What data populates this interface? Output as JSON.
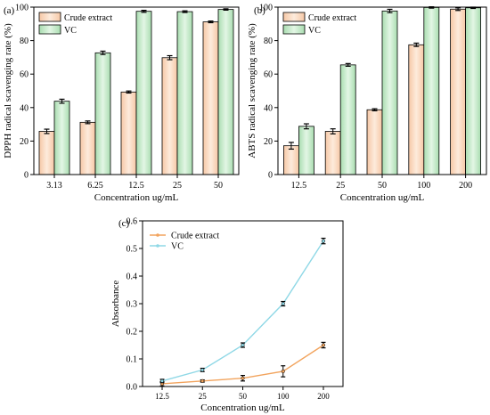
{
  "panels": {
    "a": {
      "label": "(a)"
    },
    "b": {
      "label": "(b)"
    },
    "c": {
      "label": "(c)"
    }
  },
  "chart_data": [
    {
      "id": "a",
      "type": "bar",
      "categories": [
        "3.13",
        "6.25",
        "12.5",
        "25",
        "50"
      ],
      "series": [
        {
          "name": "Crude extract",
          "values": [
            25.8,
            31.2,
            49.3,
            69.8,
            91.2
          ],
          "errors": [
            1.3,
            0.8,
            0.6,
            1.2,
            0.5
          ],
          "color": "#f9d4b8"
        },
        {
          "name": "VC",
          "values": [
            43.8,
            72.7,
            97.5,
            97.3,
            98.6
          ],
          "errors": [
            1.2,
            1.0,
            0.6,
            0.5,
            0.4
          ],
          "color": "#b8e6bd"
        }
      ],
      "xlabel": "Concentration ug/mL",
      "ylabel": "DPPH radical scavenging rate (%)",
      "ylim": [
        0,
        100
      ],
      "yticks": [
        0,
        20,
        40,
        60,
        80,
        100
      ],
      "legend": "top-left"
    },
    {
      "id": "b",
      "type": "bar",
      "categories": [
        "12.5",
        "25",
        "50",
        "100",
        "200"
      ],
      "series": [
        {
          "name": "Crude extract",
          "values": [
            17.2,
            25.8,
            38.7,
            77.5,
            98.8
          ],
          "errors": [
            2.0,
            1.5,
            0.6,
            1.0,
            0.8
          ],
          "color": "#f9d4b8"
        },
        {
          "name": "VC",
          "values": [
            28.8,
            65.5,
            97.7,
            99.8,
            99.6
          ],
          "errors": [
            1.5,
            0.8,
            1.0,
            0.4,
            0.4
          ],
          "color": "#b8e6bd"
        }
      ],
      "xlabel": "Concentration ug/mL",
      "ylabel": "ABTS radical scavenging rate (%)",
      "ylim": [
        0,
        100
      ],
      "yticks": [
        0,
        20,
        40,
        60,
        80,
        100
      ],
      "legend": "top-left"
    },
    {
      "id": "c",
      "type": "line",
      "x": [
        "12.5",
        "25",
        "50",
        "100",
        "200"
      ],
      "series": [
        {
          "name": "Crude extract",
          "values": [
            0.01,
            0.02,
            0.03,
            0.055,
            0.15
          ],
          "errors": [
            0.008,
            0.004,
            0.01,
            0.02,
            0.01
          ],
          "color": "#f2a45e"
        },
        {
          "name": "VC",
          "values": [
            0.02,
            0.06,
            0.15,
            0.3,
            0.527
          ],
          "errors": [
            0.006,
            0.006,
            0.008,
            0.008,
            0.01
          ],
          "color": "#8fd8e6"
        }
      ],
      "xlabel": "Concentration ug/mL",
      "ylabel": "Absorbance",
      "ylim": [
        0,
        0.6
      ],
      "yticks": [
        "0.0",
        "0.1",
        "0.2",
        "0.3",
        "0.4",
        "0.5",
        "0.6"
      ],
      "legend": "top-left"
    }
  ]
}
